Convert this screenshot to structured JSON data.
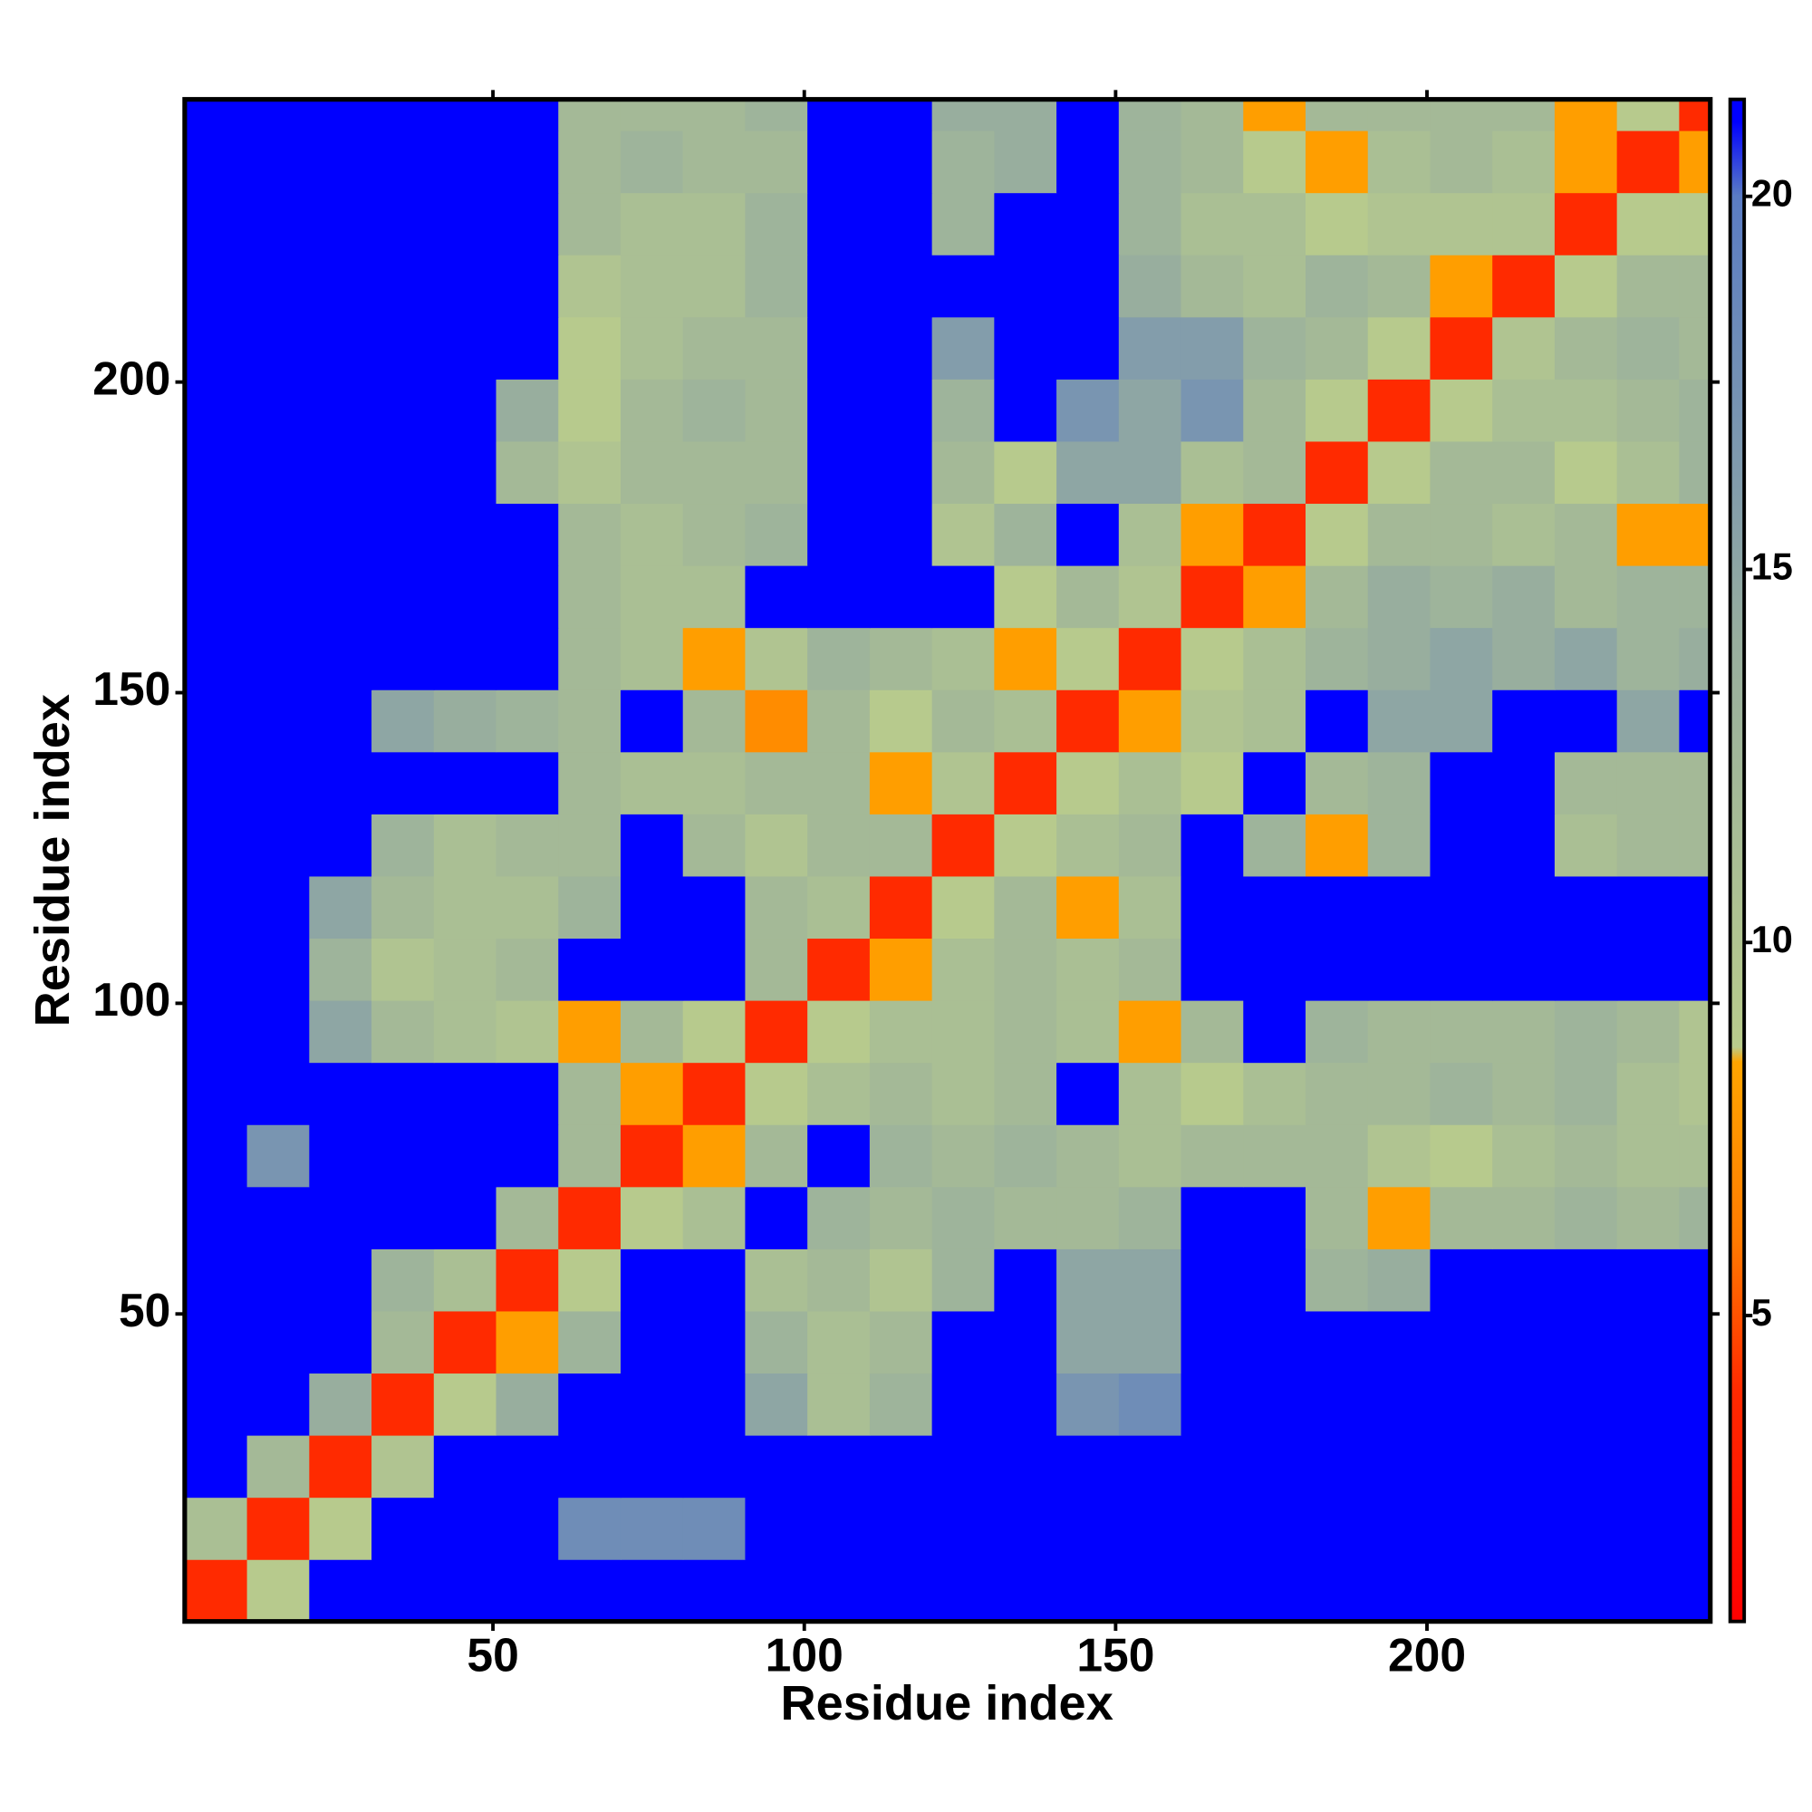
{
  "chart_data": {
    "type": "heatmap",
    "xlabel": "Residue index",
    "ylabel": "Residue index",
    "x": [
      5.5,
      15.5,
      25.5,
      35.5,
      45.5,
      55.5,
      65.5,
      75.5,
      85.5,
      95.5,
      105.5,
      115.5,
      125.5,
      135.5,
      145.5,
      155.5,
      165.5,
      175.5,
      185.5,
      195.5,
      205.5,
      215.5,
      225.5,
      235.5,
      245.5
    ],
    "y": [
      5.5,
      15.5,
      25.5,
      35.5,
      45.5,
      55.5,
      65.5,
      75.5,
      85.5,
      95.5,
      105.5,
      115.5,
      125.5,
      135.5,
      145.5,
      155.5,
      165.5,
      175.5,
      185.5,
      195.5,
      205.5,
      215.5,
      225.5,
      235.5,
      245.5
    ],
    "values": [
      [
        4,
        9,
        21,
        21,
        21,
        21,
        21,
        21,
        21,
        21,
        21,
        21,
        21,
        21,
        21,
        21,
        21,
        21,
        21,
        21,
        21,
        21,
        21,
        21,
        21
      ],
      [
        11,
        4,
        9,
        21,
        21,
        21,
        18,
        18,
        18,
        21,
        21,
        21,
        21,
        21,
        21,
        21,
        21,
        21,
        21,
        21,
        21,
        21,
        21,
        21,
        21
      ],
      [
        21,
        12,
        4,
        10,
        21,
        21,
        21,
        21,
        21,
        21,
        21,
        21,
        21,
        21,
        21,
        21,
        21,
        21,
        21,
        21,
        21,
        21,
        21,
        21,
        21
      ],
      [
        21,
        21,
        14,
        4,
        9,
        14,
        21,
        21,
        21,
        15,
        11,
        13,
        21,
        21,
        17,
        18,
        21,
        21,
        21,
        21,
        21,
        21,
        21,
        21,
        21
      ],
      [
        21,
        21,
        21,
        12,
        4,
        8,
        13,
        21,
        21,
        13,
        11,
        12,
        21,
        21,
        15,
        15,
        21,
        21,
        21,
        21,
        21,
        21,
        21,
        21,
        21
      ],
      [
        21,
        21,
        21,
        13,
        11,
        4,
        9,
        21,
        21,
        11,
        12,
        10,
        13,
        21,
        15,
        15,
        21,
        21,
        13,
        14,
        21,
        21,
        21,
        21,
        21
      ],
      [
        21,
        21,
        21,
        21,
        21,
        12,
        4,
        9,
        11,
        21,
        13,
        12,
        13,
        12,
        12,
        13,
        21,
        21,
        12,
        8,
        12,
        12,
        13,
        12,
        13
      ],
      [
        21,
        17,
        21,
        21,
        21,
        21,
        12,
        4,
        8,
        12,
        21,
        13,
        12,
        13,
        12,
        11,
        12,
        12,
        12,
        10,
        9,
        11,
        12,
        11,
        11
      ],
      [
        21,
        21,
        21,
        21,
        21,
        21,
        12,
        8,
        4,
        9,
        11,
        12,
        11,
        12,
        21,
        11,
        9,
        11,
        12,
        12,
        13,
        12,
        13,
        11,
        10
      ],
      [
        21,
        21,
        15,
        12,
        11,
        10,
        8,
        12,
        9,
        4,
        9,
        11,
        11,
        12,
        11,
        8,
        12,
        21,
        13,
        12,
        12,
        12,
        13,
        12,
        10
      ],
      [
        21,
        21,
        13,
        10,
        11,
        12,
        21,
        21,
        21,
        12,
        4,
        8,
        11,
        12,
        11,
        12,
        21,
        21,
        21,
        21,
        21,
        21,
        21,
        21,
        21
      ],
      [
        21,
        21,
        15,
        12,
        11,
        11,
        13,
        21,
        21,
        12,
        11,
        4,
        9,
        12,
        8,
        11,
        21,
        21,
        21,
        21,
        21,
        21,
        21,
        21,
        21
      ],
      [
        21,
        21,
        21,
        13,
        11,
        12,
        12,
        21,
        12,
        10,
        12,
        12,
        4,
        9,
        11,
        12,
        21,
        13,
        8,
        13,
        21,
        21,
        11,
        12,
        12
      ],
      [
        21,
        21,
        21,
        21,
        21,
        21,
        12,
        11,
        11,
        12,
        12,
        8,
        10,
        4,
        9,
        11,
        9,
        21,
        12,
        13,
        21,
        21,
        12,
        12,
        12
      ],
      [
        21,
        21,
        21,
        15,
        14,
        13,
        12,
        21,
        12,
        7,
        12,
        9,
        12,
        11,
        4,
        8,
        10,
        11,
        21,
        15,
        15,
        21,
        21,
        15,
        21
      ],
      [
        21,
        21,
        21,
        21,
        21,
        21,
        12,
        11,
        8,
        10,
        13,
        12,
        11,
        8,
        9,
        4,
        9,
        11,
        13,
        14,
        15,
        14,
        15,
        13,
        14
      ],
      [
        21,
        21,
        21,
        21,
        21,
        21,
        12,
        11,
        11,
        21,
        21,
        21,
        21,
        9,
        12,
        10,
        4,
        8,
        12,
        14,
        13,
        14,
        12,
        13,
        13
      ],
      [
        21,
        21,
        21,
        21,
        21,
        21,
        12,
        11,
        12,
        13,
        21,
        21,
        10,
        13,
        21,
        11,
        8,
        4,
        9,
        12,
        12,
        11,
        12,
        8,
        8
      ],
      [
        21,
        21,
        21,
        21,
        21,
        12,
        10,
        12,
        12,
        12,
        21,
        21,
        12,
        9,
        15,
        15,
        11,
        12,
        4,
        9,
        12,
        12,
        9,
        11,
        13
      ],
      [
        21,
        21,
        21,
        21,
        21,
        14,
        9,
        12,
        13,
        12,
        21,
        21,
        13,
        21,
        17,
        15,
        17,
        12,
        9,
        4,
        9,
        11,
        11,
        12,
        13
      ],
      [
        21,
        21,
        21,
        21,
        21,
        21,
        9,
        11,
        12,
        12,
        21,
        21,
        16,
        21,
        21,
        16,
        16,
        13,
        12,
        9,
        4,
        10,
        12,
        13,
        12
      ],
      [
        21,
        21,
        21,
        21,
        21,
        21,
        10,
        11,
        11,
        13,
        21,
        21,
        21,
        21,
        21,
        14,
        12,
        11,
        13,
        12,
        8,
        4,
        9,
        12,
        12
      ],
      [
        21,
        21,
        21,
        21,
        21,
        21,
        12,
        11,
        11,
        13,
        21,
        21,
        13,
        21,
        21,
        13,
        11,
        11,
        9,
        10,
        10,
        10,
        4,
        9,
        9
      ],
      [
        21,
        21,
        21,
        21,
        21,
        21,
        12,
        13,
        12,
        12,
        21,
        21,
        13,
        14,
        21,
        13,
        12,
        9,
        8,
        11,
        12,
        11,
        8,
        4,
        8
      ],
      [
        21,
        21,
        21,
        21,
        21,
        21,
        12,
        12,
        12,
        13,
        21,
        21,
        14,
        14,
        21,
        13,
        12,
        8,
        12,
        12,
        12,
        12,
        8,
        9,
        4
      ]
    ],
    "xlim": [
      0.5,
      245.5
    ],
    "ylim": [
      0.5,
      245.5
    ],
    "xticks": [
      50,
      100,
      150,
      200
    ],
    "yticks": [
      50,
      100,
      150,
      200
    ],
    "zlim": [
      0.9,
      21.3
    ],
    "zticks": [
      5,
      10,
      15,
      20
    ],
    "colorscale": [
      [
        0.9,
        "#ff0000"
      ],
      [
        4,
        "#ff2a00"
      ],
      [
        6,
        "#ff7a00"
      ],
      [
        8.4,
        "#ffa500"
      ],
      [
        8.6,
        "#b9cc8c"
      ],
      [
        14,
        "#98ae9e"
      ],
      [
        20,
        "#5a7cc4"
      ],
      [
        21,
        "#0000ff"
      ]
    ]
  }
}
